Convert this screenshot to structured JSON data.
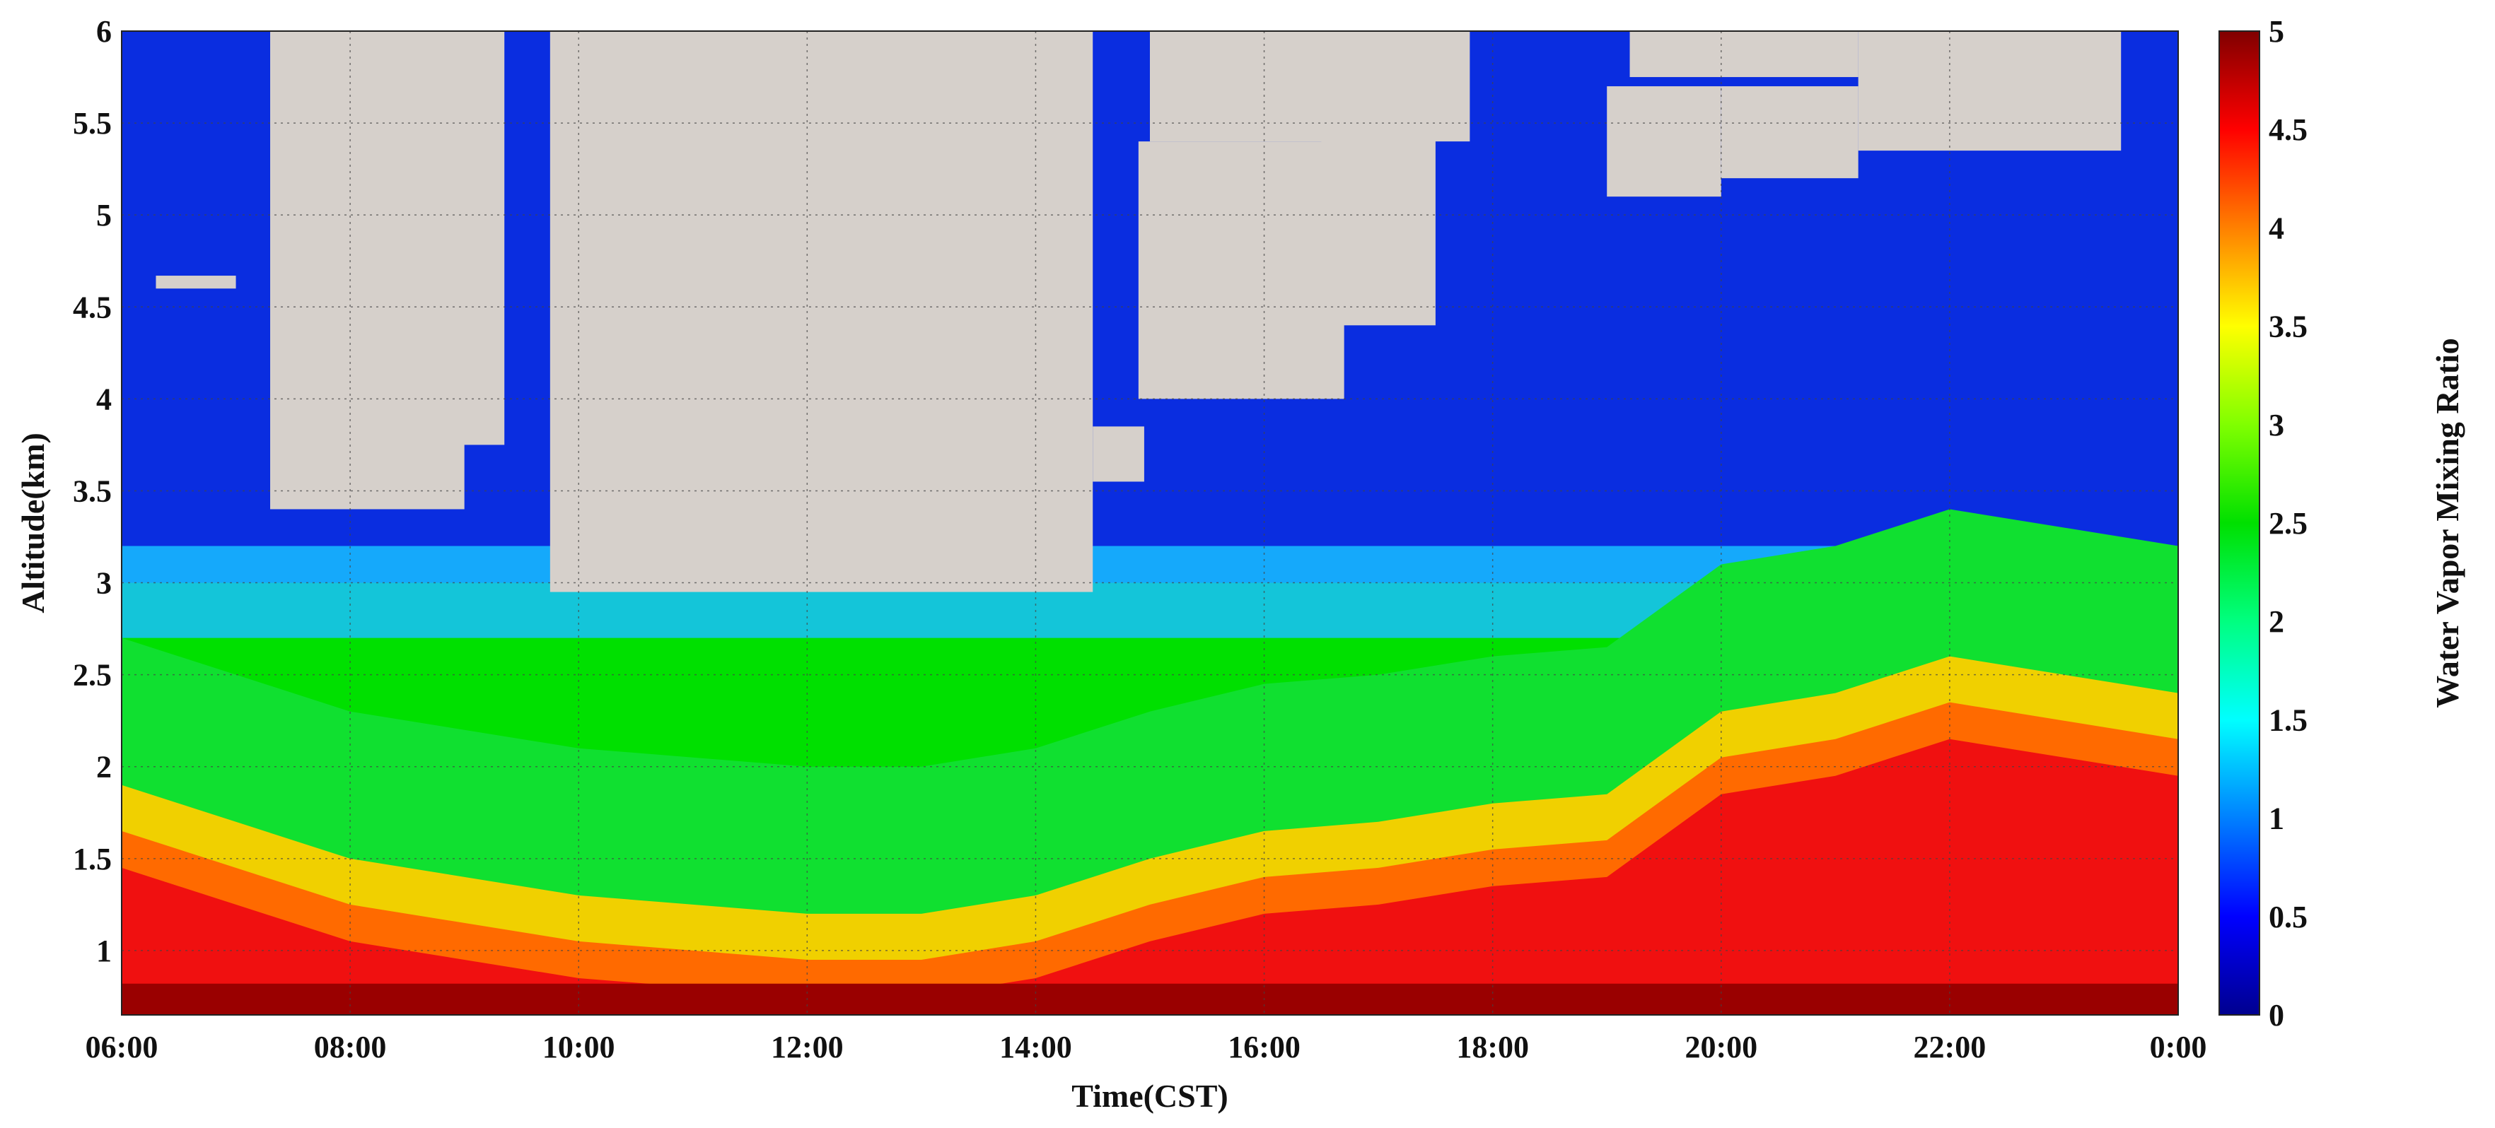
{
  "chart_data": {
    "type": "heatmap",
    "title": "",
    "xlabel": "Time(CST)",
    "ylabel": "Altitude(km)",
    "colorbar_label": "Water Vapor Mixing Ratio",
    "x_tick_labels": [
      "06:00",
      "08:00",
      "10:00",
      "12:00",
      "14:00",
      "16:00",
      "18:00",
      "20:00",
      "22:00",
      "0:00"
    ],
    "x_range_hours": [
      6,
      24
    ],
    "y_tick_labels": [
      "1",
      "1.5",
      "2",
      "2.5",
      "3",
      "3.5",
      "4",
      "4.5",
      "5",
      "5.5",
      "6"
    ],
    "y_range_km": [
      0.65,
      6
    ],
    "colorbar_tick_labels": [
      "0",
      "0.5",
      "1",
      "1.5",
      "2",
      "2.5",
      "3",
      "3.5",
      "4",
      "4.5",
      "5"
    ],
    "colorbar_range": [
      0,
      5
    ],
    "colormap": [
      "#00008f",
      "#0000ff",
      "#0080ff",
      "#00ffff",
      "#00ff80",
      "#00e000",
      "#80ff00",
      "#ffff00",
      "#ff8000",
      "#ff0000",
      "#800000"
    ],
    "no_data_color": "#d6d0cb",
    "grid": true,
    "grid_style": "dotted",
    "surface_layer": {
      "time_h": [
        6,
        7,
        8,
        9,
        10,
        11,
        12,
        13,
        14,
        15,
        16,
        17,
        18,
        19,
        20,
        21,
        22,
        23,
        24
      ],
      "top_km": [
        1.8,
        1.6,
        1.4,
        1.3,
        1.2,
        1.15,
        1.1,
        1.1,
        1.2,
        1.4,
        1.55,
        1.6,
        1.7,
        1.75,
        2.2,
        2.3,
        2.5,
        2.4,
        2.3
      ]
    },
    "no_data_regions": [
      {
        "t0": 7.3,
        "t1": 9.0,
        "z0": 3.4,
        "z1": 6.0
      },
      {
        "t0": 8.9,
        "t1": 9.35,
        "z0": 3.75,
        "z1": 6.0
      },
      {
        "t0": 9.75,
        "t1": 14.5,
        "z0": 2.95,
        "z1": 6.0
      },
      {
        "t0": 14.5,
        "t1": 14.95,
        "z0": 3.55,
        "z1": 3.85
      },
      {
        "t0": 14.9,
        "t1": 16.7,
        "z0": 4.0,
        "z1": 5.4
      },
      {
        "t0": 15.0,
        "t1": 17.8,
        "z0": 5.4,
        "z1": 6.0
      },
      {
        "t0": 16.5,
        "t1": 17.5,
        "z0": 4.4,
        "z1": 5.6
      },
      {
        "t0": 19.0,
        "t1": 20.0,
        "z0": 5.1,
        "z1": 5.7
      },
      {
        "t0": 20.0,
        "t1": 21.2,
        "z0": 5.2,
        "z1": 5.7
      },
      {
        "t0": 19.2,
        "t1": 21.2,
        "z0": 5.75,
        "z1": 6.0
      },
      {
        "t0": 21.2,
        "t1": 23.5,
        "z0": 5.35,
        "z1": 6.0
      },
      {
        "t0": 6.3,
        "t1": 7.0,
        "z0": 4.6,
        "z1": 4.67
      }
    ]
  }
}
